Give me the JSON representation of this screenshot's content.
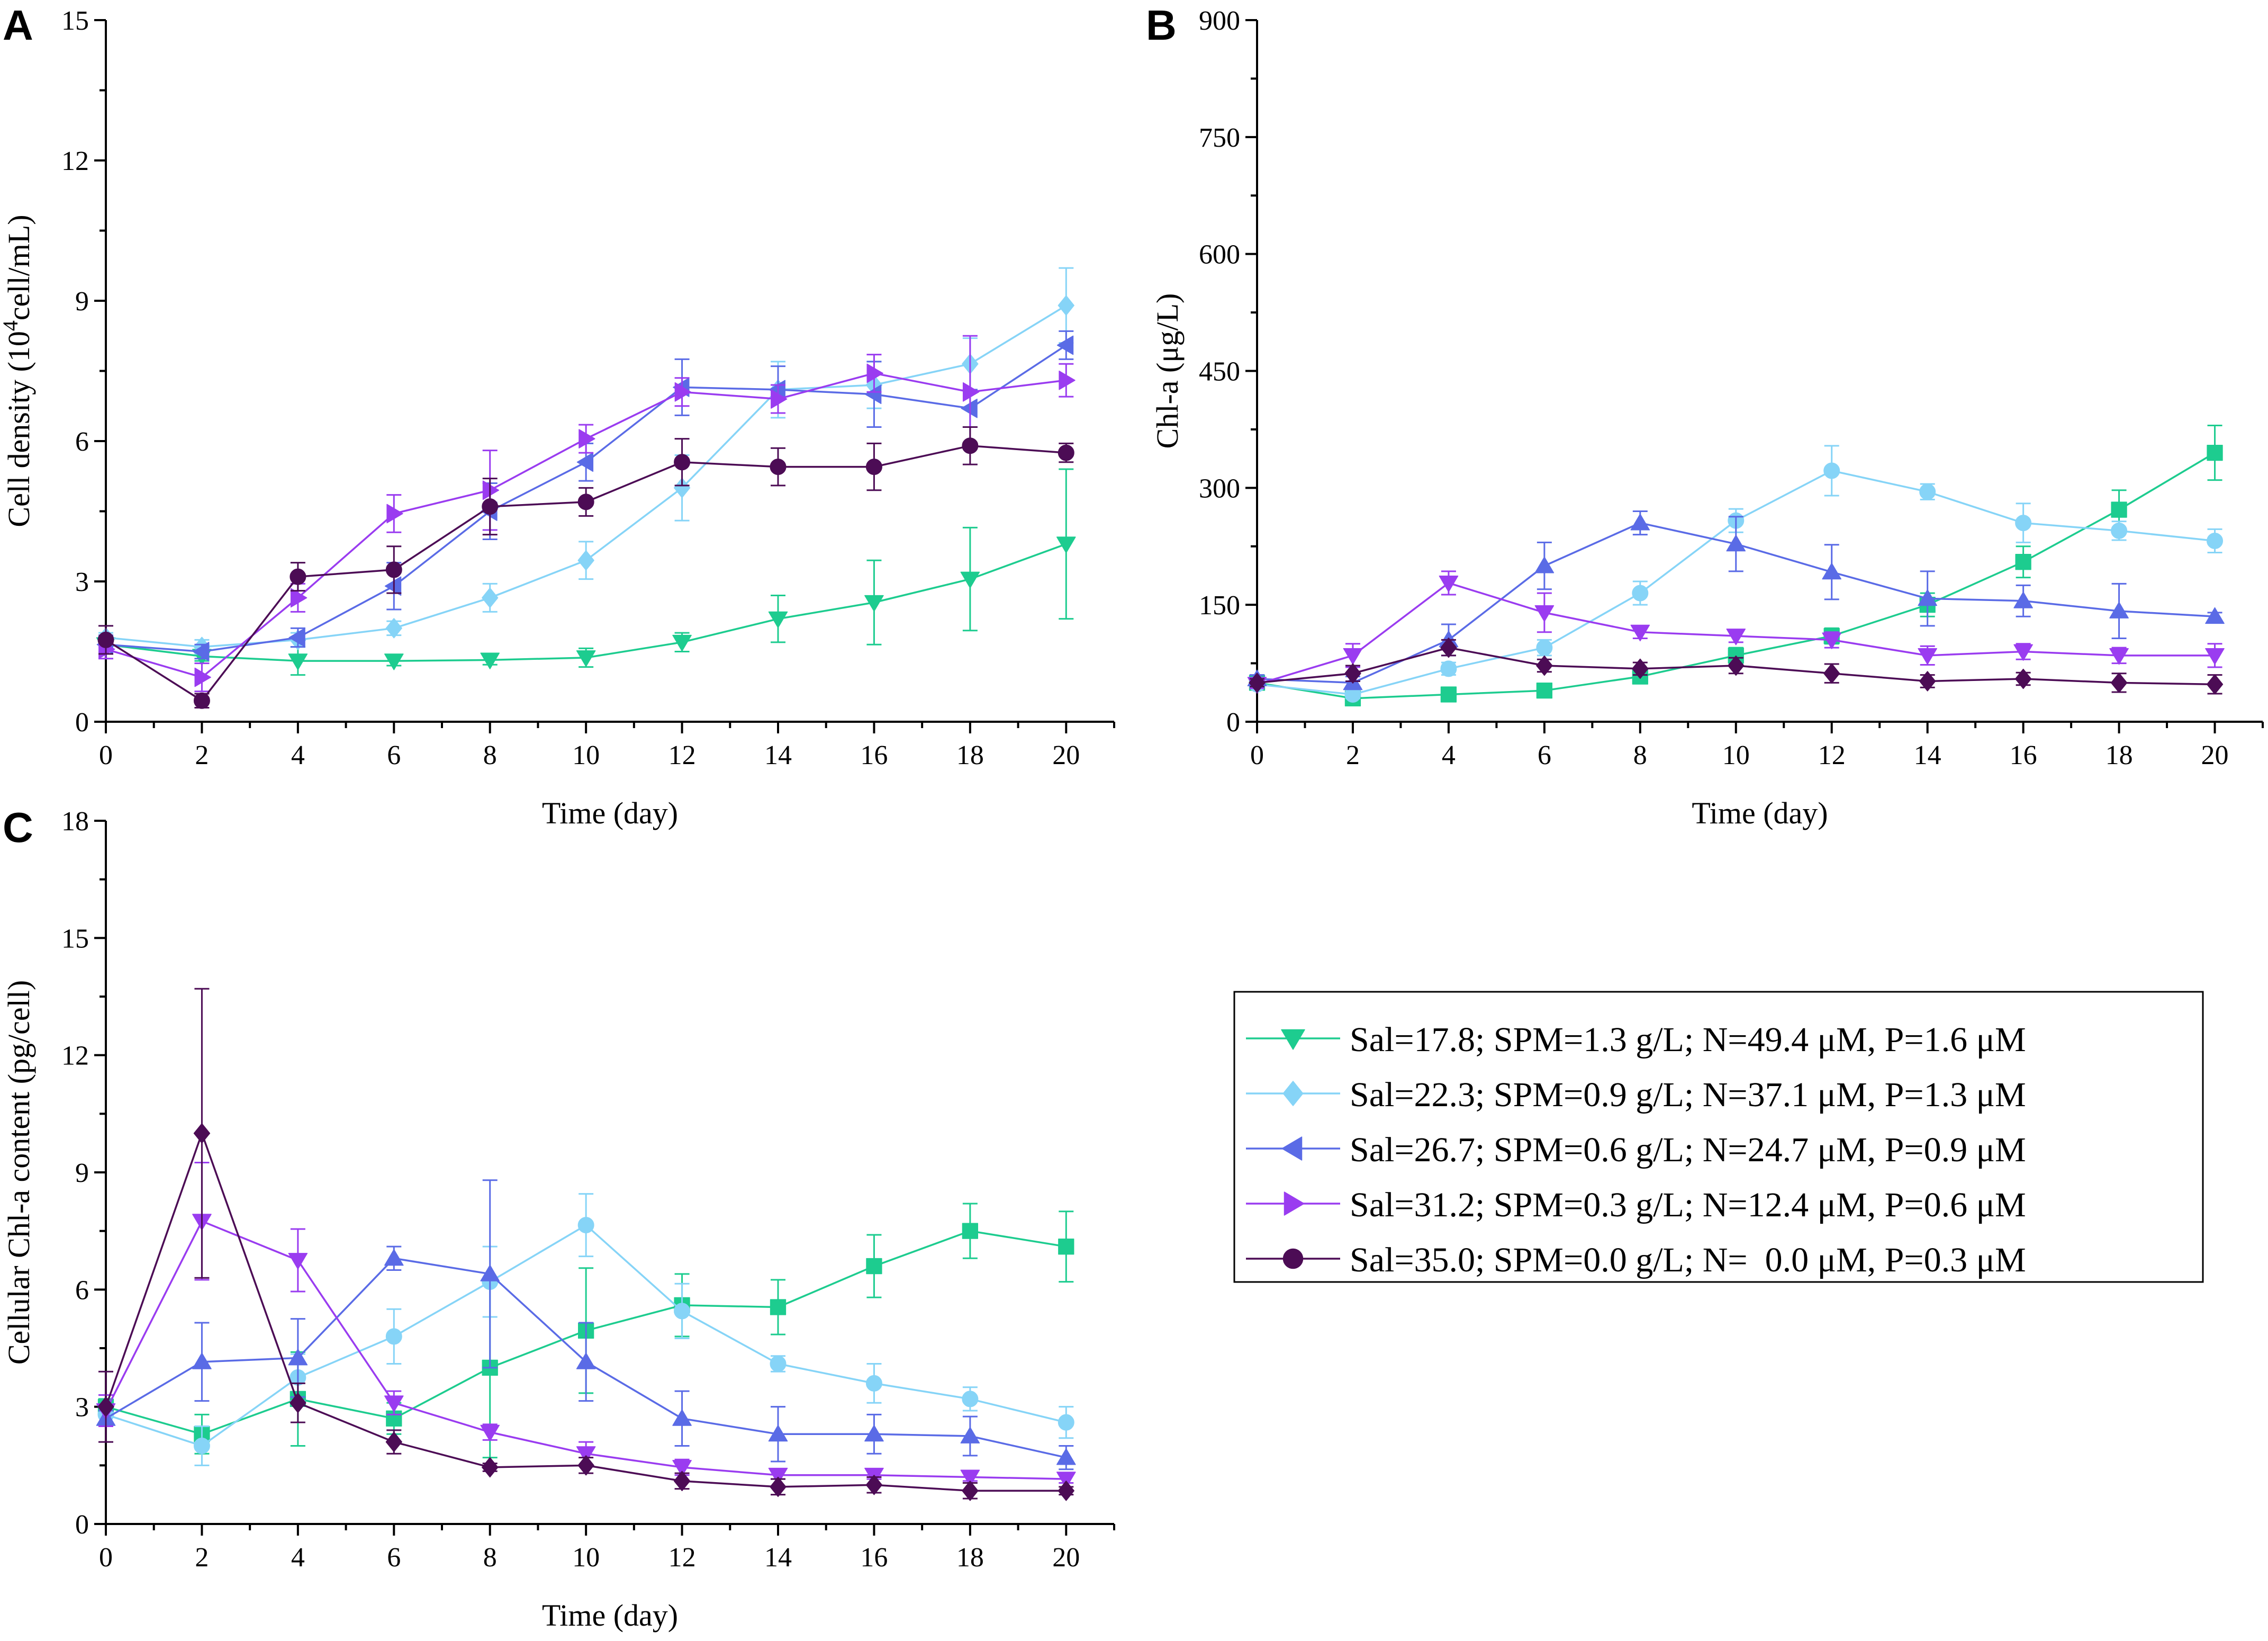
{
  "figure": {
    "colors": {
      "s1": "#1dcc8f",
      "s2": "#86d4f7",
      "s3": "#5a6be6",
      "s4": "#9a3cf0",
      "s5": "#4c0c55"
    }
  },
  "legend": [
    {
      "id": "s1",
      "text": "Sal=17.8; SPM=1.3 g/L; N=49.4 μM, P=1.6 μM",
      "marker": "triangle-down"
    },
    {
      "id": "s2",
      "text": "Sal=22.3; SPM=0.9 g/L; N=37.1 μM, P=1.3 μM",
      "marker": "diamond"
    },
    {
      "id": "s3",
      "text": "Sal=26.7; SPM=0.6 g/L; N=24.7 μM, P=0.9 μM",
      "marker": "triangle-left"
    },
    {
      "id": "s4",
      "text": "Sal=31.2; SPM=0.3 g/L; N=12.4 μM, P=0.6 μM",
      "marker": "triangle-right"
    },
    {
      "id": "s5",
      "text": "Sal=35.0; SPM=0.0 g/L; N=  0.0 μM, P=0.3 μM",
      "marker": "circle"
    }
  ],
  "chart_data": [
    {
      "panel": "A",
      "type": "line",
      "title": "",
      "xlabel": "Time (day)",
      "ylabel_main": "Cell density (10",
      "ylabel_sup": "4",
      "ylabel_end": "cell/mL)",
      "x": [
        0,
        2,
        4,
        6,
        8,
        10,
        12,
        14,
        16,
        18,
        20
      ],
      "xlim": [
        0,
        21
      ],
      "ylim": [
        0,
        15
      ],
      "xticks": [
        0,
        2,
        4,
        6,
        8,
        10,
        12,
        14,
        16,
        18,
        20
      ],
      "yticks": [
        0,
        3,
        6,
        9,
        12,
        15
      ],
      "series": [
        {
          "id": "s1",
          "marker": "triangle-down",
          "values": [
            1.65,
            1.4,
            1.3,
            1.3,
            1.32,
            1.37,
            1.7,
            2.2,
            2.55,
            3.05,
            3.8
          ],
          "errors": [
            0.15,
            0.1,
            0.3,
            0.1,
            0.1,
            0.2,
            0.2,
            0.5,
            0.9,
            1.1,
            1.6
          ]
        },
        {
          "id": "s2",
          "marker": "diamond",
          "values": [
            1.8,
            1.6,
            1.75,
            2.0,
            2.65,
            3.45,
            5.0,
            7.1,
            7.2,
            7.65,
            8.9
          ],
          "errors": [
            0.1,
            0.15,
            0.15,
            0.15,
            0.3,
            0.4,
            0.7,
            0.6,
            0.5,
            0.55,
            0.8
          ]
        },
        {
          "id": "s3",
          "marker": "triangle-left",
          "values": [
            1.65,
            1.5,
            1.8,
            2.9,
            4.5,
            5.55,
            7.15,
            7.1,
            7.0,
            6.7,
            8.05
          ],
          "errors": [
            0.2,
            0.15,
            0.2,
            0.5,
            0.6,
            0.4,
            0.6,
            0.5,
            0.7,
            0.4,
            0.3
          ]
        },
        {
          "id": "s4",
          "marker": "triangle-right",
          "values": [
            1.55,
            0.95,
            2.65,
            4.45,
            4.95,
            6.05,
            7.05,
            6.9,
            7.45,
            7.05,
            7.3
          ],
          "errors": [
            0.2,
            0.3,
            0.3,
            0.4,
            0.85,
            0.3,
            0.3,
            0.3,
            0.4,
            1.2,
            0.35
          ]
        },
        {
          "id": "s5",
          "marker": "circle",
          "values": [
            1.75,
            0.45,
            3.1,
            3.25,
            4.6,
            4.7,
            5.55,
            5.45,
            5.45,
            5.9,
            5.75
          ],
          "errors": [
            0.3,
            0.15,
            0.3,
            0.5,
            0.6,
            0.3,
            0.5,
            0.4,
            0.5,
            0.4,
            0.2
          ]
        }
      ]
    },
    {
      "panel": "B",
      "type": "line",
      "title": "",
      "xlabel": "Time (day)",
      "ylabel_main": "Chl-a (μg/L)",
      "ylabel_sup": "",
      "ylabel_end": "",
      "x": [
        0,
        2,
        4,
        6,
        8,
        10,
        12,
        14,
        16,
        18,
        20
      ],
      "xlim": [
        0,
        21
      ],
      "ylim": [
        0,
        900
      ],
      "xticks": [
        0,
        2,
        4,
        6,
        8,
        10,
        12,
        14,
        16,
        18,
        20
      ],
      "yticks": [
        0,
        150,
        300,
        450,
        600,
        750,
        900
      ],
      "series": [
        {
          "id": "s1",
          "marker": "square",
          "values": [
            50,
            30,
            35,
            40,
            58,
            85,
            110,
            150,
            205,
            272,
            345
          ],
          "errors": [
            5,
            5,
            5,
            5,
            8,
            10,
            10,
            15,
            20,
            25,
            35
          ]
        },
        {
          "id": "s2",
          "marker": "circle",
          "values": [
            48,
            35,
            68,
            95,
            165,
            258,
            322,
            295,
            255,
            245,
            232
          ],
          "errors": [
            5,
            5,
            8,
            10,
            15,
            15,
            32,
            10,
            25,
            12,
            15
          ]
        },
        {
          "id": "s3",
          "marker": "triangle-up",
          "values": [
            55,
            50,
            105,
            200,
            255,
            228,
            192,
            158,
            155,
            142,
            135
          ],
          "errors": [
            5,
            8,
            20,
            30,
            15,
            35,
            35,
            35,
            20,
            35,
            5
          ]
        },
        {
          "id": "s4",
          "marker": "triangle-down",
          "values": [
            48,
            85,
            178,
            140,
            115,
            110,
            105,
            85,
            90,
            85,
            85
          ],
          "errors": [
            5,
            15,
            15,
            25,
            8,
            8,
            10,
            12,
            10,
            10,
            15
          ]
        },
        {
          "id": "s5",
          "marker": "diamond",
          "values": [
            50,
            62,
            95,
            72,
            68,
            72,
            62,
            52,
            55,
            50,
            48
          ],
          "errors": [
            5,
            10,
            10,
            8,
            8,
            10,
            12,
            8,
            8,
            12,
            12
          ]
        }
      ]
    },
    {
      "panel": "C",
      "type": "line",
      "title": "",
      "xlabel": "Time (day)",
      "ylabel_main": "Cellular Chl-a content (pg/cell)",
      "ylabel_sup": "",
      "ylabel_end": "",
      "x": [
        0,
        2,
        4,
        6,
        8,
        10,
        12,
        14,
        16,
        18,
        20
      ],
      "xlim": [
        0,
        21
      ],
      "ylim": [
        0,
        18
      ],
      "xticks": [
        0,
        2,
        4,
        6,
        8,
        10,
        12,
        14,
        16,
        18,
        20
      ],
      "yticks": [
        0,
        3,
        6,
        9,
        12,
        15,
        18
      ],
      "series": [
        {
          "id": "s1",
          "marker": "square",
          "values": [
            3.0,
            2.3,
            3.2,
            2.7,
            4.0,
            4.95,
            5.6,
            5.55,
            6.6,
            7.5,
            7.1
          ],
          "errors": [
            0.2,
            0.5,
            1.2,
            0.4,
            2.3,
            1.6,
            0.8,
            0.7,
            0.8,
            0.7,
            0.9
          ]
        },
        {
          "id": "s2",
          "marker": "circle",
          "values": [
            2.8,
            2.0,
            3.75,
            4.8,
            6.2,
            7.65,
            5.45,
            4.1,
            3.6,
            3.2,
            2.6
          ],
          "errors": [
            0.2,
            0.5,
            0.6,
            0.7,
            0.9,
            0.8,
            0.7,
            0.2,
            0.5,
            0.3,
            0.4
          ]
        },
        {
          "id": "s3",
          "marker": "triangle-up",
          "values": [
            2.7,
            4.15,
            4.25,
            6.8,
            6.4,
            4.15,
            2.7,
            2.3,
            2.3,
            2.25,
            1.7
          ],
          "errors": [
            0.2,
            1.0,
            1.0,
            0.3,
            2.4,
            1.0,
            0.7,
            0.7,
            0.5,
            0.5,
            0.3
          ]
        },
        {
          "id": "s4",
          "marker": "triangle-down",
          "values": [
            2.9,
            7.75,
            6.75,
            3.1,
            2.35,
            1.8,
            1.45,
            1.25,
            1.25,
            1.2,
            1.15
          ],
          "errors": [
            0.4,
            1.5,
            0.8,
            0.3,
            0.2,
            0.3,
            0.2,
            0.1,
            0.1,
            0.1,
            0.1
          ]
        },
        {
          "id": "s5",
          "marker": "diamond",
          "values": [
            3.0,
            10.0,
            3.1,
            2.1,
            1.45,
            1.5,
            1.1,
            0.95,
            1.0,
            0.85,
            0.85
          ],
          "errors": [
            0.9,
            3.7,
            0.5,
            0.3,
            0.1,
            0.2,
            0.2,
            0.2,
            0.2,
            0.2,
            0.1
          ]
        }
      ]
    }
  ]
}
